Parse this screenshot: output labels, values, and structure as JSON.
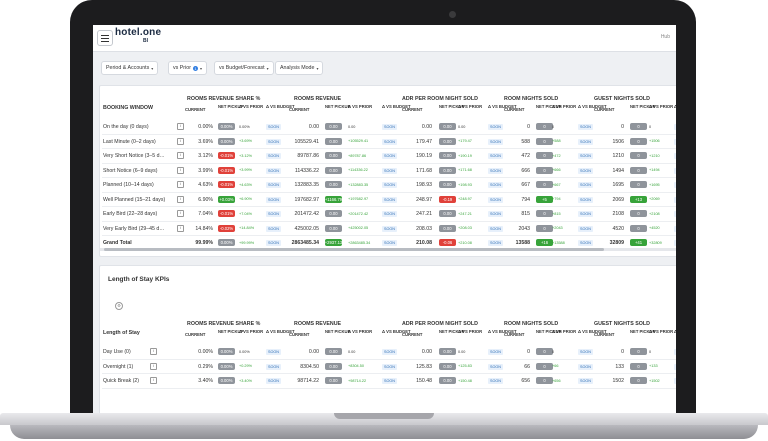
{
  "app": {
    "logo": "hotel.one",
    "logo_sub": "BI",
    "user": "Hub"
  },
  "filters": [
    {
      "label": "Period & Accounts",
      "badge": ""
    },
    {
      "label": "vs Prior",
      "badge": "1"
    },
    {
      "label": "vs Budget/Forecast",
      "badge": ""
    },
    {
      "label": "Analysis Mode",
      "badge": ""
    }
  ],
  "booking": {
    "first_header": "BOOKING WINDOW",
    "groups": [
      "ROOMS REVENUE SHARE %",
      "ROOMS REVENUE",
      "ADR PER ROOM NIGHT SOLD",
      "ROOM NIGHTS SOLD",
      "GUEST NIGHTS SOLD"
    ],
    "sub": {
      "current": "CURRENT",
      "net_pickup": "NET PICKUP",
      "vs_prior": "Δ VS PRIOR",
      "vs_budget": "Δ VS BUDGET"
    },
    "rows": [
      {
        "label": "On the day (0 days)",
        "share": "0.00%",
        "share_pick": "0.00%",
        "share_prior": "0.00%",
        "rev": "0.00",
        "rev_pick": "0.00",
        "rev_prior": "0.00",
        "adr": "0.00",
        "adr_pick": "0.00",
        "adr_prior": "0.00",
        "rn": "0",
        "rn_pick": "0",
        "rn_prior": "0",
        "gn": "0",
        "gn_pick": "0",
        "gn_prior": "0"
      },
      {
        "label": "Last Minute (0–2 days)",
        "share": "3.69%",
        "share_pick": "0.00%",
        "share_prior": "+3.69%",
        "rev": "105529.41",
        "rev_pick": "0.00",
        "rev_prior": "+105529.41",
        "adr": "179.47",
        "adr_pick": "0.00",
        "adr_prior": "+179.47",
        "rn": "588",
        "rn_pick": "0",
        "rn_prior": "+588",
        "gn": "1506",
        "gn_pick": "0",
        "gn_prior": "+1506"
      },
      {
        "label": "Very Short Notice (3–5 d…",
        "share": "3.12%",
        "share_pick": "-0.01%",
        "share_prior": "+3.12%",
        "rev": "89787.86",
        "rev_pick": "0.00",
        "rev_prior": "+89787.86",
        "adr": "190.19",
        "adr_pick": "0.00",
        "adr_prior": "+190.19",
        "rn": "472",
        "rn_pick": "0",
        "rn_prior": "+472",
        "gn": "1210",
        "gn_pick": "0",
        "gn_prior": "+1210"
      },
      {
        "label": "Short Notice (6–9 days)",
        "share": "3.99%",
        "share_pick": "-0.01%",
        "share_prior": "+3.99%",
        "rev": "114336.22",
        "rev_pick": "0.00",
        "rev_prior": "+114336.22",
        "adr": "171.68",
        "adr_pick": "0.00",
        "adr_prior": "+171.68",
        "rn": "666",
        "rn_pick": "0",
        "rn_prior": "+666",
        "gn": "1494",
        "gn_pick": "0",
        "gn_prior": "+1494"
      },
      {
        "label": "Planned (10–14 days)",
        "share": "4.63%",
        "share_pick": "-0.01%",
        "share_prior": "+4.63%",
        "rev": "132883.35",
        "rev_pick": "0.00",
        "rev_prior": "+132883.35",
        "adr": "198.93",
        "adr_pick": "0.00",
        "adr_prior": "+198.93",
        "rn": "667",
        "rn_pick": "0",
        "rn_prior": "+667",
        "gn": "1695",
        "gn_pick": "0",
        "gn_prior": "+1695"
      },
      {
        "label": "Well Planned (15–21 days)",
        "share": "6.90%",
        "share_pick": "+0.03%",
        "share_prior": "+6.90%",
        "rev": "197682.97",
        "rev_pick": "+1166.79",
        "rev_prior": "+197682.97",
        "adr": "248.97",
        "adr_pick": "-0.19",
        "adr_prior": "+248.97",
        "rn": "794",
        "rn_pick": "+5",
        "rn_prior": "+794",
        "gn": "2069",
        "gn_pick": "+13",
        "gn_prior": "+2069"
      },
      {
        "label": "Early Bird (22–28 days)",
        "share": "7.04%",
        "share_pick": "-0.01%",
        "share_prior": "+7.04%",
        "rev": "201472.42",
        "rev_pick": "0.00",
        "rev_prior": "+201472.42",
        "adr": "247.21",
        "adr_pick": "0.00",
        "adr_prior": "+247.21",
        "rn": "815",
        "rn_pick": "0",
        "rn_prior": "+815",
        "gn": "2108",
        "gn_pick": "0",
        "gn_prior": "+2108"
      },
      {
        "label": "Very Early Bird (29–45 d…",
        "share": "14.84%",
        "share_pick": "-0.02%",
        "share_prior": "+14.84%",
        "rev": "425002.05",
        "rev_pick": "0.00",
        "rev_prior": "+425002.05",
        "adr": "208.03",
        "adr_pick": "0.00",
        "adr_prior": "+208.03",
        "rn": "2043",
        "rn_pick": "0",
        "rn_prior": "+2043",
        "gn": "4520",
        "gn_pick": "0",
        "gn_prior": "+4520"
      }
    ],
    "total": {
      "label": "Grand Total",
      "share": "99.99%",
      "share_pick": "0.00%",
      "share_prior": "+99.99%",
      "rev": "2863485.34",
      "rev_pick": "+2937.13",
      "rev_prior": "+2863485.34",
      "adr": "210.08",
      "adr_pick": "-0.06",
      "adr_prior": "+210.08",
      "rn": "13588",
      "rn_pick": "+16",
      "rn_prior": "+13588",
      "gn": "32809",
      "gn_pick": "+41",
      "gn_prior": "+32809"
    },
    "soon": "SOON"
  },
  "los": {
    "title": "Length of Stay KPIs",
    "first_header": "Length of Stay",
    "groups": [
      "ROOMS REVENUE SHARE %",
      "ROOMS REVENUE",
      "ADR PER ROOM NIGHT SOLD",
      "ROOM NIGHTS SOLD",
      "GUEST NIGHTS SOLD"
    ],
    "rows": [
      {
        "label": "Day Use (0)",
        "share": "0.00%",
        "share_pick": "0.00%",
        "share_prior": "0.00%",
        "rev": "0.00",
        "rev_pick": "0.00",
        "rev_prior": "0.00",
        "adr": "0.00",
        "adr_pick": "0.00",
        "adr_prior": "0.00",
        "rn": "0",
        "rn_pick": "0",
        "rn_prior": "0",
        "gn": "0",
        "gn_pick": "0",
        "gn_prior": "0"
      },
      {
        "label": "Overnight (1)",
        "share": "0.29%",
        "share_pick": "0.00%",
        "share_prior": "+0.29%",
        "rev": "8304.50",
        "rev_pick": "0.00",
        "rev_prior": "+8304.50",
        "adr": "125.83",
        "adr_pick": "0.00",
        "adr_prior": "+125.83",
        "rn": "66",
        "rn_pick": "0",
        "rn_prior": "+66",
        "gn": "133",
        "gn_pick": "0",
        "gn_prior": "+133"
      },
      {
        "label": "Quick Break (2)",
        "share": "3.40%",
        "share_pick": "0.00%",
        "share_prior": "+3.40%",
        "rev": "98714.22",
        "rev_pick": "0.00",
        "rev_prior": "+98714.22",
        "adr": "150.48",
        "adr_pick": "0.00",
        "adr_prior": "+150.48",
        "rn": "656",
        "rn_pick": "0",
        "rn_prior": "+656",
        "gn": "1502",
        "gn_pick": "0",
        "gn_prior": "+1502"
      }
    ]
  }
}
